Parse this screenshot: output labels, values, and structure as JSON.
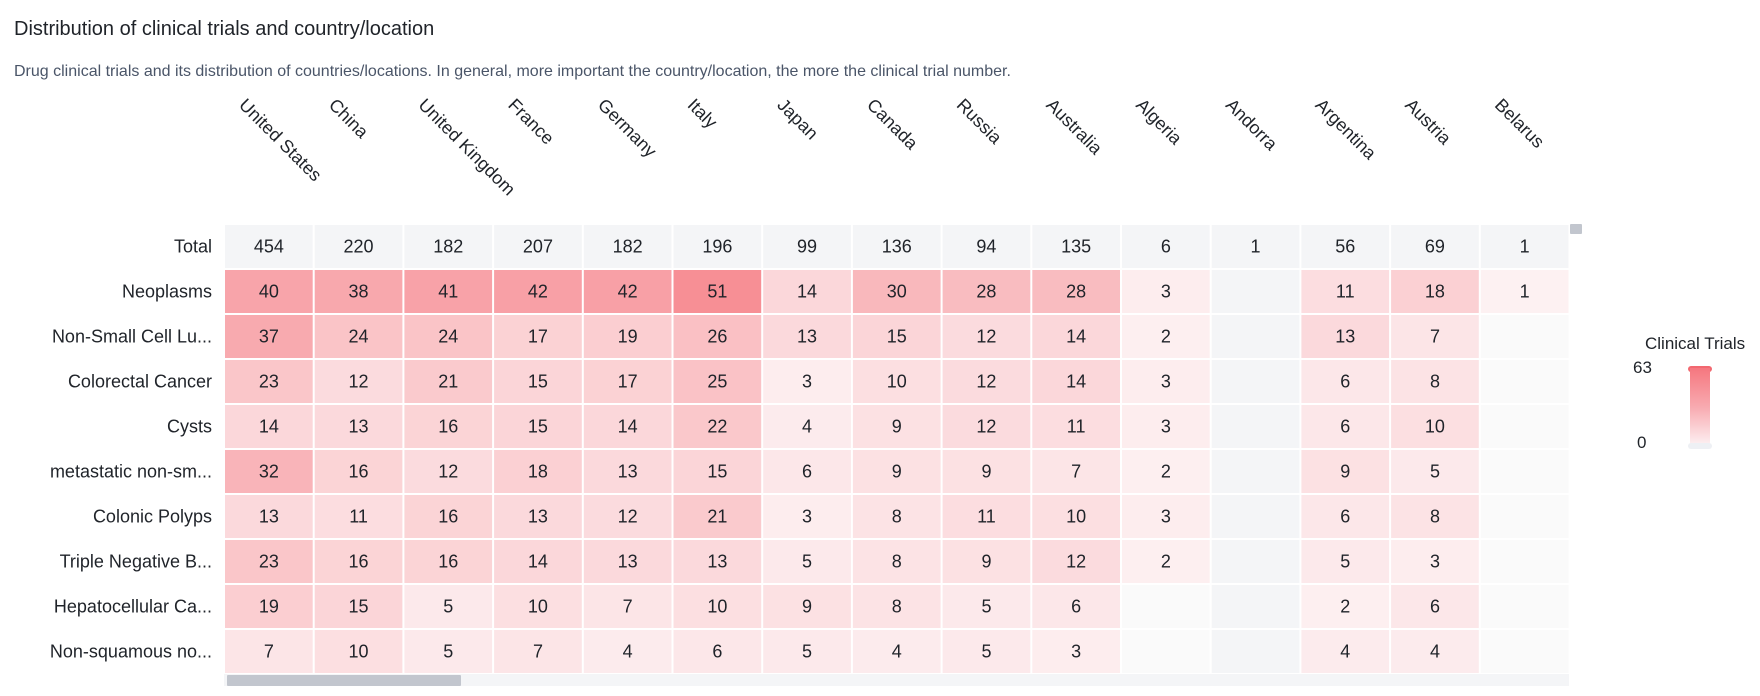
{
  "header": {
    "title": "Distribution of clinical trials and country/location",
    "subtitle": "Drug clinical trials and its distribution of countries/locations. In general, more important the country/location, the more the clinical trial number."
  },
  "legend": {
    "title": "Clinical Trials",
    "max": "63",
    "min": "0"
  },
  "colors": {
    "low": "#fdf3f4",
    "high": "#f5777f",
    "total_row_bg": "#f4f5f7",
    "empty_cell": "#f4f5f7",
    "scroll_thumb": "#c2c6ce"
  },
  "chart_data": {
    "type": "heatmap",
    "title": "Distribution of clinical trials and country/location",
    "color_scale": [
      0,
      63
    ],
    "columns": [
      "United States",
      "China",
      "United Kingdom",
      "France",
      "Germany",
      "Italy",
      "Japan",
      "Canada",
      "Russia",
      "Australia",
      "Algeria",
      "Andorra",
      "Argentina",
      "Austria",
      "Belarus"
    ],
    "rows": [
      "Total",
      "Neoplasms",
      "Non-Small Cell Lu...",
      "Colorectal Cancer",
      "Cysts",
      "metastatic non-sm...",
      "Colonic Polyps",
      "Triple Negative B...",
      "Hepatocellular Ca...",
      "Non-squamous no..."
    ],
    "values": [
      [
        454,
        220,
        182,
        207,
        182,
        196,
        99,
        136,
        94,
        135,
        6,
        1,
        56,
        69,
        1
      ],
      [
        40,
        38,
        41,
        42,
        42,
        51,
        14,
        30,
        28,
        28,
        3,
        null,
        11,
        18,
        1
      ],
      [
        37,
        24,
        24,
        17,
        19,
        26,
        13,
        15,
        12,
        14,
        2,
        null,
        13,
        7,
        null
      ],
      [
        23,
        12,
        21,
        15,
        17,
        25,
        3,
        10,
        12,
        14,
        3,
        null,
        6,
        8,
        null
      ],
      [
        14,
        13,
        16,
        15,
        14,
        22,
        4,
        9,
        12,
        11,
        3,
        null,
        6,
        10,
        null
      ],
      [
        32,
        16,
        12,
        18,
        13,
        15,
        6,
        9,
        9,
        7,
        2,
        null,
        9,
        5,
        null
      ],
      [
        13,
        11,
        16,
        13,
        12,
        21,
        3,
        8,
        11,
        10,
        3,
        null,
        6,
        8,
        null
      ],
      [
        23,
        16,
        16,
        14,
        13,
        13,
        5,
        8,
        9,
        12,
        2,
        null,
        5,
        3,
        null
      ],
      [
        19,
        15,
        5,
        10,
        7,
        10,
        9,
        8,
        5,
        6,
        null,
        null,
        2,
        6,
        null
      ],
      [
        7,
        10,
        5,
        7,
        4,
        6,
        5,
        4,
        5,
        3,
        null,
        null,
        4,
        4,
        null
      ]
    ],
    "legend_placement": "right"
  }
}
